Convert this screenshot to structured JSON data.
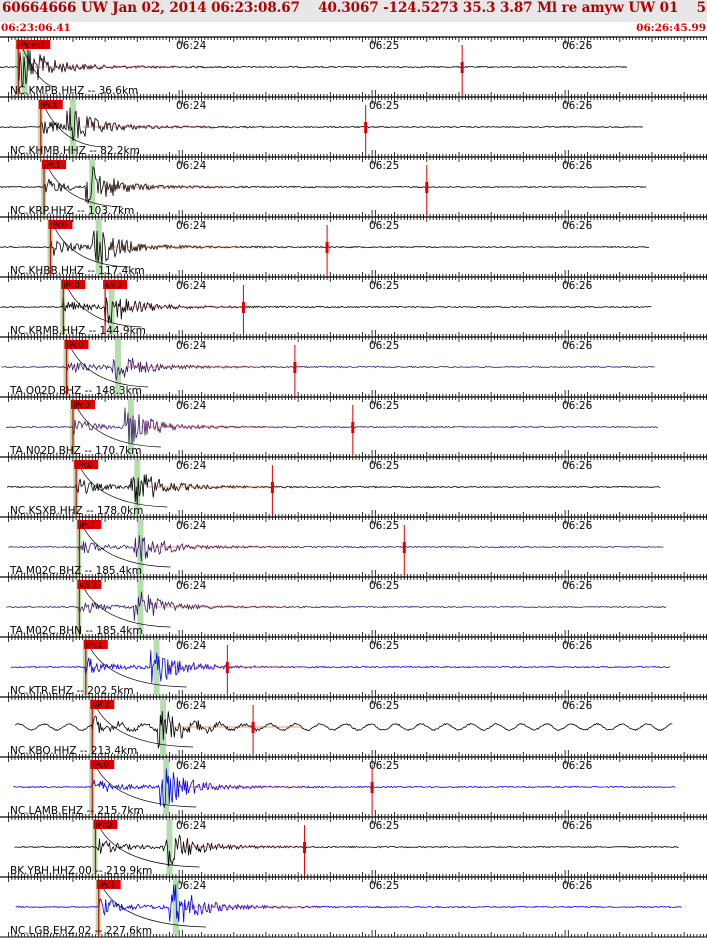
{
  "header": {
    "title": "60664666 UW Jan 02, 2014 06:23:08.67    40.3067 -124.5273 35.3 3.87 Ml re amyw UW 01    5",
    "start_time": "06:23:06.41",
    "end_time": "06:26:45.99"
  },
  "colors": {
    "header_bg": "#e7e7e7",
    "title": "#b00000",
    "time": "#e00000",
    "trace_black": "#000000",
    "trace_purple": "#3a1a6a",
    "trace_blue": "#0000ee",
    "pick_red": "#e00000",
    "window_green": "#a8d8a0",
    "coda_red": "#e03020"
  },
  "chart_data": {
    "type": "line",
    "x_axis": {
      "start": "06:23:06.41",
      "end": "06:26:45.99",
      "tick_labels": [
        "06:24",
        "06:25",
        "06:26"
      ],
      "tick_times_sec": [
        53.59,
        113.59,
        173.59
      ]
    },
    "panels": [
      {
        "label": "NC.KMPB.HHZ -- 36.6km",
        "picks": [
          "iPc+s1"
        ],
        "color": "black",
        "onset_sec": 3.0,
        "s_sec": 5.0,
        "pick2_sec": 141.0,
        "amp": 0.85
      },
      {
        "label": "NC.KHMB.HHZ -- 82.2km",
        "picks": [
          "iPc1"
        ],
        "color": "black",
        "onset_sec": 10.0,
        "s_sec": 20.0,
        "pick2_sec": 111.0,
        "amp": 0.8
      },
      {
        "label": "NC.KRP.HHZ -- 103.7km",
        "picks": [
          "iPc1"
        ],
        "color": "black",
        "onset_sec": 11.0,
        "s_sec": 26.0,
        "pick2_sec": 130.0,
        "amp": 0.85
      },
      {
        "label": "NC.KHBB.HHZ -- 117.4km",
        "picks": [
          "iPc0"
        ],
        "color": "black",
        "onset_sec": 13.0,
        "s_sec": 28.0,
        "pick2_sec": 99.0,
        "amp": 0.85
      },
      {
        "label": "NC.KRMB.HHZ -- 144.9km",
        "picks": [
          "iPc0",
          "eS 2"
        ],
        "color": "black",
        "onset_sec": 17.0,
        "s_sec": 32.0,
        "pick2_sec": 73.0,
        "amp": 0.75
      },
      {
        "label": "TA.O02D.BHZ -- 148.3km",
        "picks": [
          "iPc0"
        ],
        "color": "purple",
        "onset_sec": 18.0,
        "s_sec": 34.0,
        "pick2_sec": 89.0,
        "amp": 0.7
      },
      {
        "label": "TA.N02D.BHZ -- 170.7km",
        "picks": [
          "iPc0"
        ],
        "color": "purple",
        "onset_sec": 20.0,
        "s_sec": 38.0,
        "pick2_sec": 107.0,
        "amp": 0.8
      },
      {
        "label": "NC.KSXB.HHZ -- 178.0km",
        "picks": [
          "iPc0"
        ],
        "color": "black",
        "onset_sec": 21.0,
        "s_sec": 40.0,
        "pick2_sec": 82.0,
        "amp": 0.85
      },
      {
        "label": "TA.M02C.BHZ -- 185.4km",
        "picks": [
          "iPc1"
        ],
        "color": "purple",
        "onset_sec": 22.0,
        "s_sec": 41.0,
        "pick2_sec": 123.0,
        "amp": 0.7
      },
      {
        "label": "TA.M02C.BHN -- 185.4km",
        "picks": [
          "eS 2"
        ],
        "color": "purple",
        "onset_sec": 22.0,
        "s_sec": 41.0,
        "pick2_sec": 0,
        "amp": 0.7
      },
      {
        "label": "NC.KTR.EHZ -- 202.5km",
        "picks": [
          "iPc1"
        ],
        "color": "blue",
        "onset_sec": 24.0,
        "s_sec": 46.0,
        "pick2_sec": 68.0,
        "amp": 0.85
      },
      {
        "label": "NC.KBO.HHZ -- 213.4km",
        "picks": [
          "eP 2"
        ],
        "color": "black",
        "onset_sec": 26.0,
        "s_sec": 48.0,
        "pick2_sec": 76.0,
        "amp": 0.8
      },
      {
        "label": "NC.LAMB.EHZ -- 215.7km",
        "picks": [
          "iPc0"
        ],
        "color": "blue",
        "onset_sec": 26.0,
        "s_sec": 49.0,
        "pick2_sec": 113.0,
        "amp": 0.85
      },
      {
        "label": "BK.YBH.HHZ.00 -- 219.9km",
        "picks": [
          "iPc0"
        ],
        "color": "black",
        "onset_sec": 27.0,
        "s_sec": 50.0,
        "pick2_sec": 92.0,
        "amp": 0.85
      },
      {
        "label": "NC.LGB.EHZ.02 -- 227.6km",
        "picks": [
          "iPc1"
        ],
        "color": "blue",
        "onset_sec": 28.0,
        "s_sec": 52.0,
        "pick2_sec": 0,
        "amp": 0.95
      }
    ]
  }
}
